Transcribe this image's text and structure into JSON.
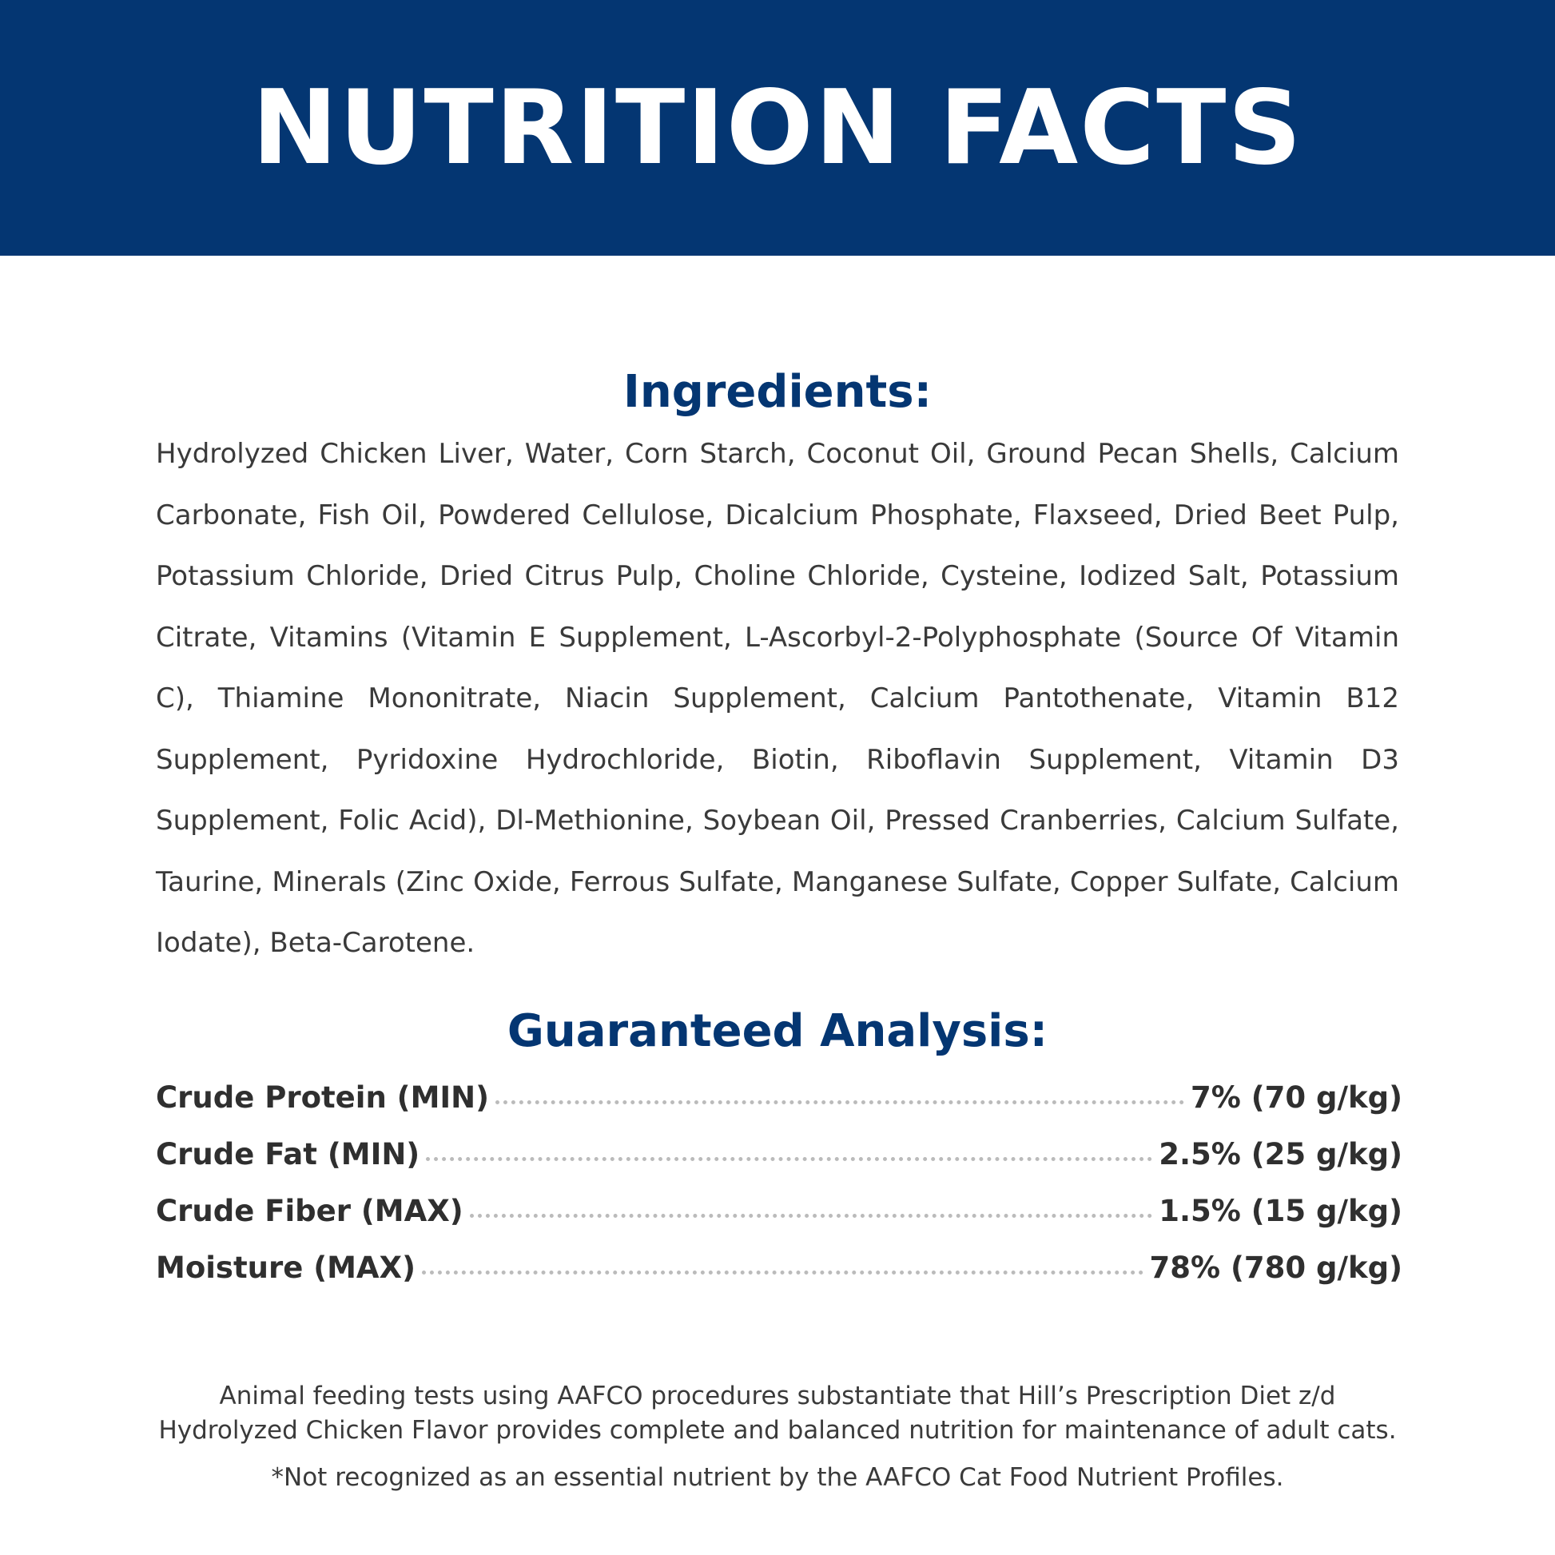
{
  "header": {
    "title": "NUTRITION FACTS"
  },
  "ingredients": {
    "heading": "Ingredients:",
    "text": "Hydrolyzed Chicken Liver, Water, Corn Starch, Coconut Oil, Ground Pecan Shells, Calcium Carbonate, Fish Oil, Powdered Cellulose, Dicalcium Phosphate, Flaxseed, Dried Beet Pulp, Potassium Chloride, Dried Citrus Pulp, Choline Chloride, Cysteine, Iodized Salt, Potassium Citrate, Vitamins (Vitamin E Supplement, L-Ascorbyl-2-Polyphosphate (Source Of Vitamin C), Thiamine Mononitrate, Niacin Supplement, Calcium Pantothenate, Vitamin B12 Supplement, Pyridoxine Hydrochloride, Biotin, Riboflavin Supplement, Vitamin D3 Supplement, Folic Acid), Dl-Methionine, Soybean Oil, Pressed Cranberries, Calcium Sulfate, Taurine, Minerals (Zinc Oxide, Ferrous Sulfate, Manganese Sulfate, Copper Sulfate, Calcium Iodate), Beta-Carotene."
  },
  "analysis": {
    "heading": "Guaranteed Analysis:",
    "rows": [
      {
        "label": "Crude Protein (MIN)",
        "value": "7% (70 g/kg)"
      },
      {
        "label": "Crude Fat (MIN)",
        "value": "2.5% (25 g/kg)"
      },
      {
        "label": "Crude Fiber (MAX)",
        "value": "1.5% (15 g/kg)"
      },
      {
        "label": "Moisture (MAX)",
        "value": "78% (780 g/kg)"
      }
    ]
  },
  "footer": {
    "statement": [
      "Animal feeding tests using AAFCO procedures substantiate that Hill’s Prescription Diet z/d",
      "Hydrolyzed Chicken Flavor provides complete and balanced nutrition for maintenance of adult cats."
    ],
    "note": "*Not recognized as an essential nutrient by the AAFCO Cat Food Nutrient Profiles."
  }
}
